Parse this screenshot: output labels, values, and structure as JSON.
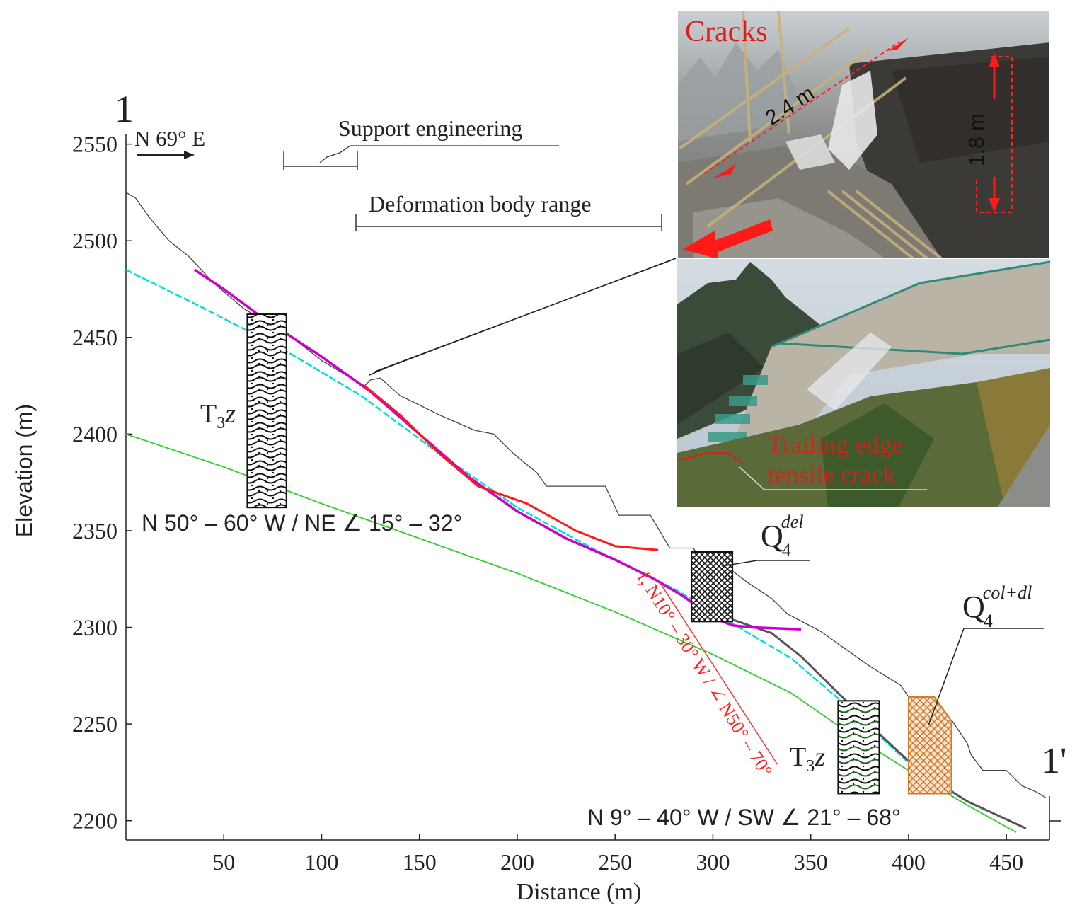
{
  "profile": {
    "start_label": "1",
    "end_label": "1'",
    "direction": "N 69° E"
  },
  "chart_data": {
    "type": "line",
    "xlabel": "Distance (m)",
    "ylabel": "Elevation (m)",
    "xlim": [
      0,
      472
    ],
    "ylim": [
      2190,
      2555
    ],
    "xticks": [
      50,
      100,
      150,
      200,
      250,
      300,
      350,
      400,
      450
    ],
    "yticks": [
      2200,
      2250,
      2300,
      2350,
      2400,
      2450,
      2500,
      2550
    ],
    "series": [
      {
        "key": "ground",
        "color": "#444444",
        "points": [
          [
            0,
            2525
          ],
          [
            5,
            2522
          ],
          [
            12,
            2512
          ],
          [
            22,
            2500
          ],
          [
            32,
            2492
          ],
          [
            45,
            2478
          ],
          [
            60,
            2465
          ],
          [
            85,
            2450
          ],
          [
            100,
            2438
          ],
          [
            115,
            2429
          ],
          [
            122,
            2425
          ],
          [
            125,
            2428
          ],
          [
            130,
            2429
          ],
          [
            140,
            2420
          ],
          [
            160,
            2410
          ],
          [
            178,
            2402
          ],
          [
            188,
            2400
          ],
          [
            198,
            2390
          ],
          [
            210,
            2380
          ],
          [
            215,
            2373
          ],
          [
            245,
            2373
          ],
          [
            252,
            2358
          ],
          [
            268,
            2358
          ],
          [
            278,
            2341
          ],
          [
            290,
            2341
          ],
          [
            295,
            2333
          ],
          [
            305,
            2333
          ],
          [
            318,
            2323
          ],
          [
            330,
            2315
          ],
          [
            338,
            2307
          ],
          [
            355,
            2298
          ],
          [
            380,
            2280
          ],
          [
            396,
            2270
          ],
          [
            400,
            2264
          ],
          [
            402,
            2258
          ],
          [
            412,
            2258
          ],
          [
            416,
            2252
          ],
          [
            422,
            2252
          ],
          [
            430,
            2240
          ],
          [
            432,
            2234
          ],
          [
            438,
            2226
          ],
          [
            450,
            2226
          ],
          [
            458,
            2218
          ],
          [
            465,
            2215
          ],
          [
            470,
            2212
          ]
        ]
      },
      {
        "key": "magenta_slip",
        "color": "#cc00cc",
        "points": [
          [
            35,
            2485
          ],
          [
            50,
            2475
          ],
          [
            70,
            2460
          ],
          [
            100,
            2440
          ],
          [
            125,
            2422
          ],
          [
            150,
            2400
          ],
          [
            175,
            2378
          ],
          [
            200,
            2360
          ],
          [
            225,
            2346
          ],
          [
            250,
            2335
          ],
          [
            270,
            2325
          ],
          [
            285,
            2316
          ],
          [
            300,
            2305
          ],
          [
            310,
            2301
          ],
          [
            320,
            2300
          ],
          [
            345,
            2299
          ]
        ]
      },
      {
        "key": "red_slip",
        "color": "#ff1a1a",
        "points": [
          [
            122,
            2425
          ],
          [
            140,
            2410
          ],
          [
            160,
            2390
          ],
          [
            180,
            2373
          ],
          [
            205,
            2364
          ],
          [
            230,
            2350
          ],
          [
            250,
            2342
          ],
          [
            272,
            2340
          ]
        ]
      },
      {
        "key": "cyan",
        "color": "#00dddd",
        "points": [
          [
            0,
            2485
          ],
          [
            40,
            2465
          ],
          [
            80,
            2444
          ],
          [
            120,
            2420
          ],
          [
            160,
            2390
          ],
          [
            200,
            2362
          ],
          [
            240,
            2340
          ],
          [
            280,
            2320
          ],
          [
            310,
            2302
          ],
          [
            340,
            2284
          ],
          [
            370,
            2258
          ],
          [
            400,
            2230
          ],
          [
            430,
            2210
          ],
          [
            460,
            2196
          ]
        ]
      },
      {
        "key": "gray_bedrock",
        "color": "#555555",
        "points": [
          [
            310,
            2304
          ],
          [
            330,
            2297
          ],
          [
            345,
            2285
          ],
          [
            365,
            2265
          ],
          [
            385,
            2245
          ],
          [
            405,
            2226
          ],
          [
            430,
            2210
          ],
          [
            460,
            2196
          ]
        ]
      },
      {
        "key": "green",
        "color": "#33cc33",
        "points": [
          [
            0,
            2400
          ],
          [
            50,
            2383
          ],
          [
            100,
            2364
          ],
          [
            150,
            2346
          ],
          [
            200,
            2328
          ],
          [
            250,
            2308
          ],
          [
            300,
            2286
          ],
          [
            340,
            2266
          ],
          [
            370,
            2245
          ],
          [
            400,
            2226
          ],
          [
            430,
            2208
          ],
          [
            455,
            2194
          ]
        ]
      },
      {
        "key": "fault",
        "color": "#ff3333",
        "points": [
          [
            273,
            2323
          ],
          [
            333,
            2229
          ]
        ]
      }
    ],
    "columns": [
      {
        "name": "T3z upper",
        "pattern": "wavy",
        "x": [
          62,
          82
        ],
        "y": [
          2362,
          2462
        ]
      },
      {
        "name": "Q4 del",
        "pattern": "hatch",
        "x": [
          289,
          310
        ],
        "y": [
          2303,
          2339
        ]
      },
      {
        "name": "T3z lower",
        "pattern": "wavy",
        "x": [
          364,
          385
        ],
        "y": [
          2214,
          2262
        ]
      },
      {
        "name": "Q4 col+dl",
        "pattern": "orange",
        "x": [
          400,
          422
        ],
        "y": [
          2214,
          2264
        ]
      }
    ]
  },
  "annotations": {
    "support_engineering": "Support engineering",
    "deformation_body_range": "Deformation body range",
    "upper_unit": "T",
    "upper_unit_sub": "3",
    "upper_unit_z": "z",
    "upper_attitude": "N 50° – 60° W / NE ∠ 15° – 32°",
    "q4del_base": "Q",
    "q4del_sub": "4",
    "q4del_sup": "del",
    "q4col_base": "Q",
    "q4col_sub": "4",
    "q4col_sup": "col+dl",
    "fault_label": "f, N10° – 30° W / ∠ N50° – 70°",
    "lower_unit": "T",
    "lower_unit_sub": "3",
    "lower_unit_z": "z",
    "lower_attitude": "N 9° – 40° W / SW ∠ 21° – 68°"
  },
  "photos": {
    "top_label": "Cracks",
    "width_measure": "2.4 m",
    "height_measure": "1.8 m",
    "bottom_label_line1": "Trailing edge",
    "bottom_label_line2": "tensile crack"
  }
}
